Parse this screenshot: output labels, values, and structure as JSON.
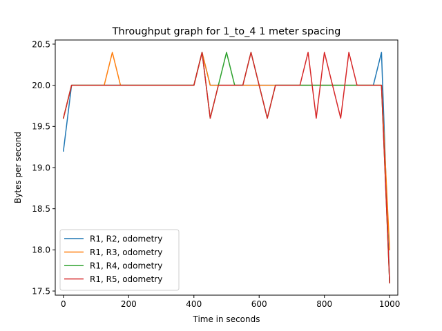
{
  "chart_data": {
    "type": "line",
    "title": "Throughput graph for 1_to_4 1 meter spacing",
    "xlabel": "Time in seconds",
    "ylabel": "Bytes per second",
    "xlim": [
      -25,
      1025
    ],
    "ylim": [
      17.45,
      20.55
    ],
    "xticks": [
      0,
      200,
      400,
      600,
      800,
      1000
    ],
    "yticks": [
      17.5,
      18.0,
      18.5,
      19.0,
      19.5,
      20.0,
      20.5
    ],
    "grid": false,
    "legend_position": "lower-left",
    "series": [
      {
        "name": "R1, R2, odometry",
        "color": "#1f77b4",
        "points": [
          [
            0,
            19.2
          ],
          [
            25,
            20.0
          ],
          [
            400,
            20.0
          ],
          [
            425,
            20.4
          ],
          [
            450,
            20.0
          ],
          [
            950,
            20.0
          ],
          [
            975,
            20.4
          ],
          [
            1000,
            17.6
          ]
        ]
      },
      {
        "name": "R1, R3, odometry",
        "color": "#ff7f0e",
        "points": [
          [
            0,
            19.6
          ],
          [
            25,
            20.0
          ],
          [
            125,
            20.0
          ],
          [
            150,
            20.4
          ],
          [
            175,
            20.0
          ],
          [
            400,
            20.0
          ],
          [
            425,
            20.4
          ],
          [
            450,
            20.0
          ],
          [
            975,
            20.0
          ],
          [
            1000,
            18.0
          ]
        ]
      },
      {
        "name": "R1, R4, odometry",
        "color": "#2ca02c",
        "points": [
          [
            0,
            19.6
          ],
          [
            25,
            20.0
          ],
          [
            400,
            20.0
          ],
          [
            425,
            20.4
          ],
          [
            450,
            19.6
          ],
          [
            475,
            20.0
          ],
          [
            500,
            20.4
          ],
          [
            525,
            20.0
          ],
          [
            550,
            20.0
          ],
          [
            575,
            20.4
          ],
          [
            600,
            20.0
          ],
          [
            625,
            19.6
          ],
          [
            650,
            20.0
          ],
          [
            975,
            20.0
          ],
          [
            1000,
            17.6
          ]
        ]
      },
      {
        "name": "R1, R5, odometry",
        "color": "#d62728",
        "points": [
          [
            0,
            19.6
          ],
          [
            25,
            20.0
          ],
          [
            400,
            20.0
          ],
          [
            425,
            20.4
          ],
          [
            450,
            19.6
          ],
          [
            475,
            20.0
          ],
          [
            550,
            20.0
          ],
          [
            575,
            20.4
          ],
          [
            600,
            20.0
          ],
          [
            625,
            19.6
          ],
          [
            650,
            20.0
          ],
          [
            725,
            20.0
          ],
          [
            750,
            20.4
          ],
          [
            775,
            19.6
          ],
          [
            800,
            20.4
          ],
          [
            825,
            20.0
          ],
          [
            850,
            19.6
          ],
          [
            875,
            20.4
          ],
          [
            900,
            20.0
          ],
          [
            975,
            20.0
          ],
          [
            1000,
            17.6
          ]
        ]
      }
    ]
  }
}
